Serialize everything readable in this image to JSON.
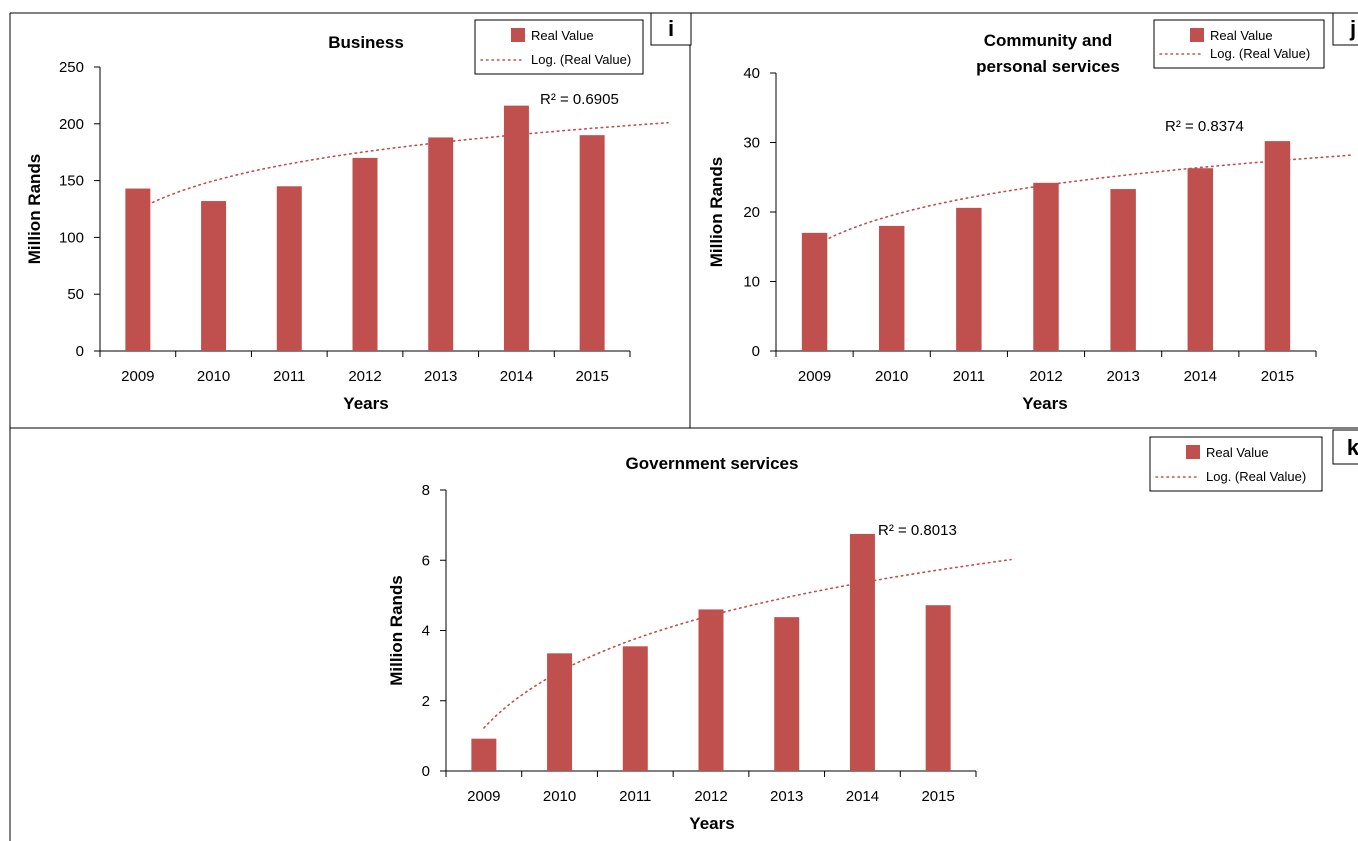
{
  "figure": {
    "colors": {
      "bar": "#c0504d",
      "trend": "#c0504d",
      "frame": "#000000"
    }
  },
  "chart_data": [
    {
      "panel": "i",
      "type": "bar",
      "title": "Business",
      "xlabel": "Years",
      "ylabel": "Million Rands",
      "categories": [
        "2009",
        "2010",
        "2011",
        "2012",
        "2013",
        "2014",
        "2015"
      ],
      "ylim": [
        0,
        250
      ],
      "yticks": [
        "0",
        "50",
        "100",
        "150",
        "200",
        "250"
      ],
      "series": [
        {
          "name": "Real Value",
          "values": [
            143,
            132,
            145,
            170,
            188,
            216,
            190
          ]
        }
      ],
      "trendline": {
        "name": "Log. (Real Value)",
        "type": "log",
        "r2_label": "R² = 0.6905"
      },
      "legend": "top-right"
    },
    {
      "panel": "j",
      "type": "bar",
      "title": "Community and personal services",
      "title_lines": [
        "Community and",
        "personal services"
      ],
      "xlabel": "Years",
      "ylabel": "Million Rands",
      "categories": [
        "2009",
        "2010",
        "2011",
        "2012",
        "2013",
        "2014",
        "2015"
      ],
      "ylim": [
        0,
        40
      ],
      "yticks": [
        "0",
        "10",
        "20",
        "30",
        "40"
      ],
      "series": [
        {
          "name": "Real Value",
          "values": [
            17,
            18,
            20.6,
            24.2,
            23.3,
            26.3,
            30.2
          ]
        }
      ],
      "trendline": {
        "name": "Log. (Real Value)",
        "type": "log",
        "r2_label": "R² = 0.8374"
      },
      "legend": "top-right"
    },
    {
      "panel": "k",
      "type": "bar",
      "title": "Government services",
      "xlabel": "Years",
      "ylabel": "Million Rands",
      "categories": [
        "2009",
        "2010",
        "2011",
        "2012",
        "2013",
        "2014",
        "2015"
      ],
      "ylim": [
        0,
        8
      ],
      "yticks": [
        "0",
        "2",
        "4",
        "6",
        "8"
      ],
      "series": [
        {
          "name": "Real Value",
          "values": [
            0.92,
            3.35,
            3.55,
            4.6,
            4.38,
            6.75,
            4.72
          ]
        }
      ],
      "trendline": {
        "name": "Log. (Real Value)",
        "type": "log",
        "r2_label": "R² = 0.8013"
      },
      "legend": "top-right"
    }
  ]
}
